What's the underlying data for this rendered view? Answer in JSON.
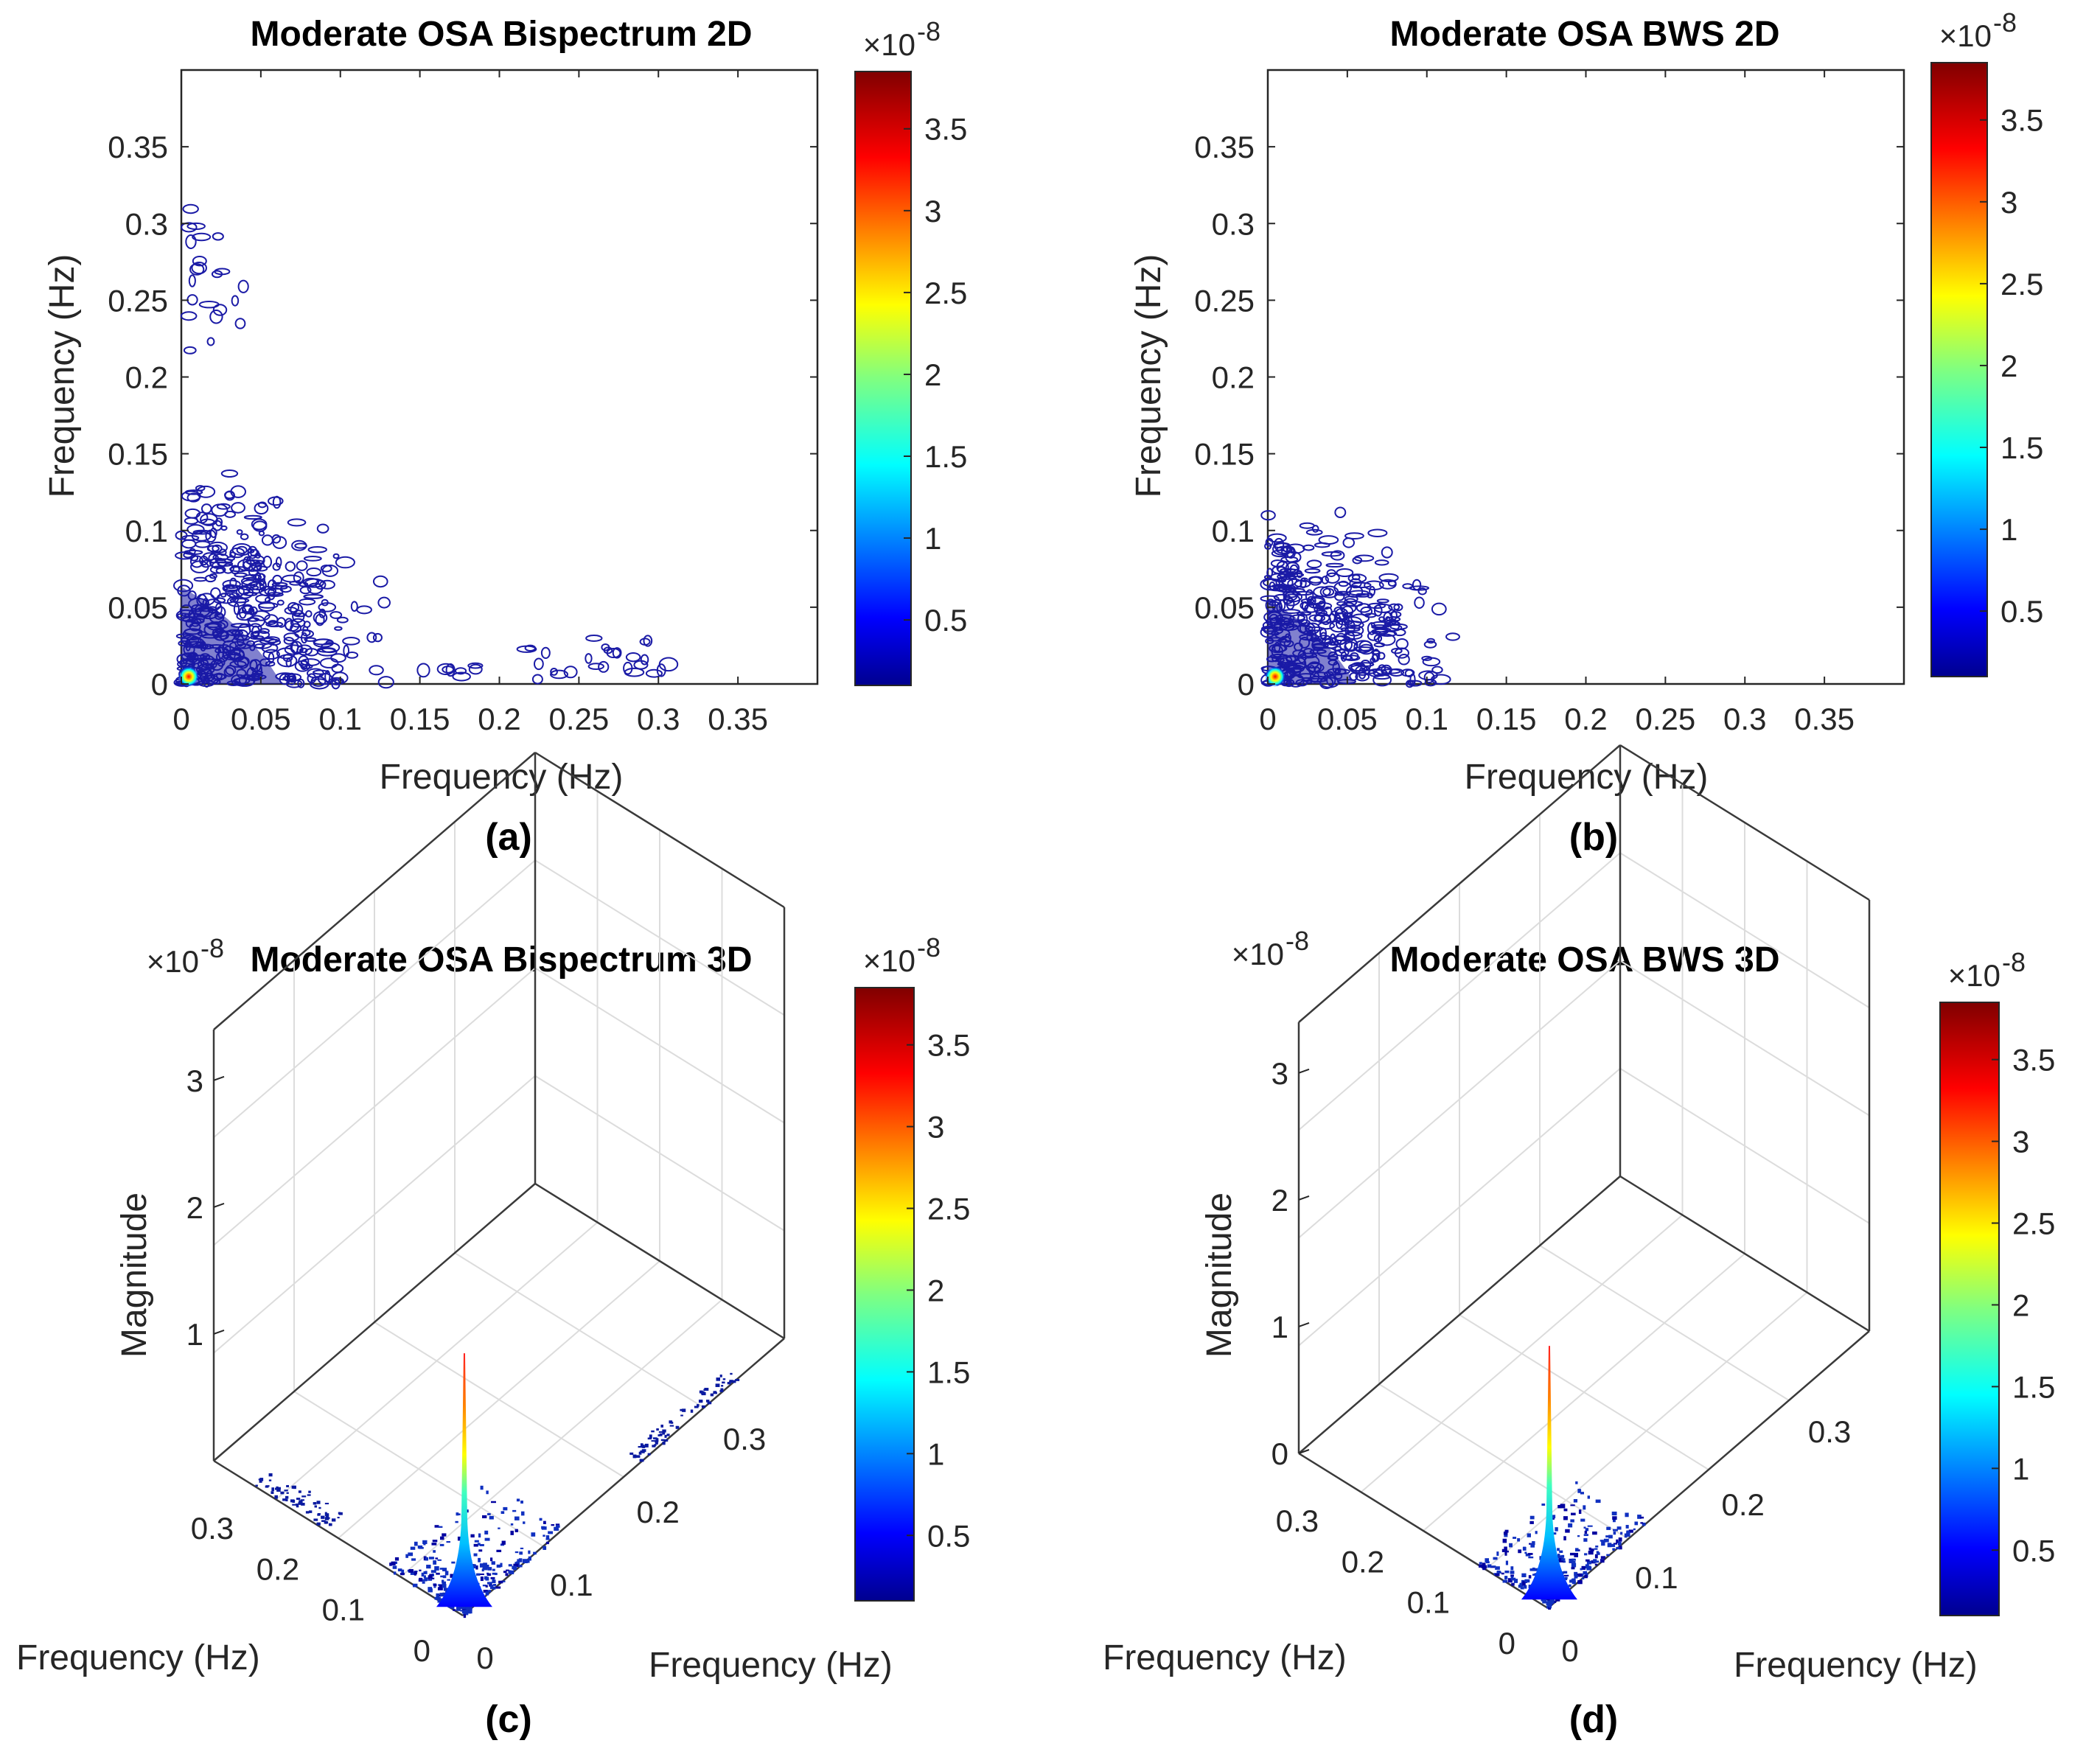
{
  "chart_data": [
    {
      "panel": "a",
      "type": "contour",
      "title": "Moderate OSA Bispectrum 2D",
      "xlabel": "Frequency (Hz)",
      "ylabel": "Frequency (Hz)",
      "xlim": [
        0,
        0.4
      ],
      "ylim": [
        0,
        0.4
      ],
      "xticks": [
        "0",
        "0.05",
        "0.1",
        "0.15",
        "0.2",
        "0.25",
        "0.3",
        "0.35"
      ],
      "yticks": [
        "0",
        "0.05",
        "0.1",
        "0.15",
        "0.2",
        "0.25",
        "0.3",
        "0.35"
      ],
      "colorbar": {
        "multiplier": "×10",
        "exponent": "-8",
        "range": [
          0.1,
          3.85
        ],
        "ticks": [
          "0.5",
          "1",
          "1.5",
          "2",
          "2.5",
          "3",
          "3.5"
        ]
      },
      "contour_extent": {
        "dense_region_max_freq": 0.1,
        "outlying_clusters": "0.22–0.31 Hz along both axes"
      },
      "caption": "(a)"
    },
    {
      "panel": "b",
      "type": "contour",
      "title": "Moderate OSA BWS 2D",
      "xlabel": "Frequency (Hz)",
      "ylabel": "Frequency (Hz)",
      "xlim": [
        0,
        0.4
      ],
      "ylim": [
        0,
        0.4
      ],
      "xticks": [
        "0",
        "0.05",
        "0.1",
        "0.15",
        "0.2",
        "0.25",
        "0.3",
        "0.35"
      ],
      "yticks": [
        "0",
        "0.05",
        "0.1",
        "0.15",
        "0.2",
        "0.25",
        "0.3",
        "0.35"
      ],
      "colorbar": {
        "multiplier": "×10",
        "exponent": "-8",
        "range": [
          0.1,
          3.85
        ],
        "ticks": [
          "0.5",
          "1",
          "1.5",
          "2",
          "2.5",
          "3",
          "3.5"
        ]
      },
      "contour_extent": {
        "dense_region_max_freq": 0.1
      },
      "caption": "(b)"
    },
    {
      "panel": "c",
      "type": "surface3d",
      "title": "Moderate OSA Bispectrum 3D",
      "xlabel": "Frequency (Hz)",
      "ylabel": "Frequency (Hz)",
      "zlabel": "Magnitude",
      "xticks": [
        "0",
        "0.1",
        "0.2",
        "0.3"
      ],
      "yticks": [
        "0",
        "0.1",
        "0.2",
        "0.3"
      ],
      "zticks": [
        "1",
        "2",
        "3"
      ],
      "zmultiplier": {
        "base": "×10",
        "exponent": "-8"
      },
      "peak_magnitude": 2.0,
      "colorbar": {
        "multiplier": "×10",
        "exponent": "-8",
        "range": [
          0.1,
          3.85
        ],
        "ticks": [
          "0.5",
          "1",
          "1.5",
          "2",
          "2.5",
          "3",
          "3.5"
        ]
      },
      "caption": "(c)"
    },
    {
      "panel": "d",
      "type": "surface3d",
      "title": "Moderate OSA BWS 3D",
      "xlabel": "Frequency (Hz)",
      "ylabel": "Frequency (Hz)",
      "zlabel": "Magnitude",
      "xticks": [
        "0",
        "0.1",
        "0.2",
        "0.3"
      ],
      "yticks": [
        "0",
        "0.1",
        "0.2",
        "0.3"
      ],
      "zticks": [
        "0",
        "1",
        "2",
        "3"
      ],
      "zmultiplier": {
        "base": "×10",
        "exponent": "-8"
      },
      "peak_magnitude": 2.0,
      "colorbar": {
        "multiplier": "×10",
        "exponent": "-8",
        "range": [
          0.1,
          3.85
        ],
        "ticks": [
          "0.5",
          "1",
          "1.5",
          "2",
          "2.5",
          "3",
          "3.5"
        ]
      },
      "caption": "(d)"
    }
  ],
  "colors": {
    "contour": "#1a1aa6",
    "axis": "#262626",
    "grid": "#dcdcdc",
    "jet": [
      "#00008f",
      "#0000ff",
      "#0080ff",
      "#00ffff",
      "#80ff80",
      "#ffff00",
      "#ff8000",
      "#ff0000",
      "#800000"
    ]
  }
}
